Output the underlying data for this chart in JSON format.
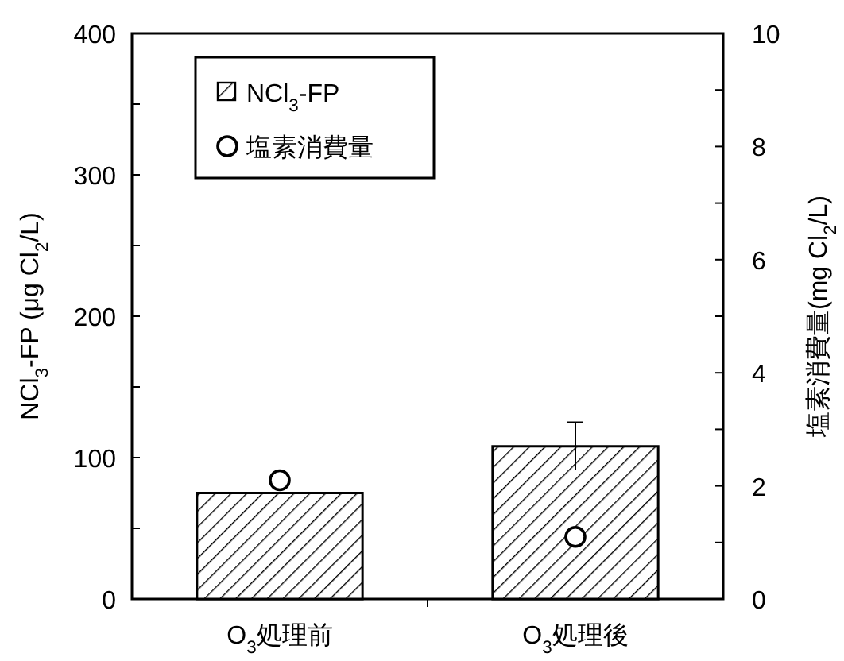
{
  "chart_data": {
    "type": "bar",
    "categories": [
      "O$_{3}$処理前",
      "O$_{3}$処理後"
    ],
    "ylabel": "NCl$_{3}$-FP (μg Cl$_{2}$/L)",
    "y2label": "塩素消費量(mg Cl$_{2}$/L)",
    "ylim": [
      0,
      400
    ],
    "yticks": [
      0,
      {
        "value": 50,
        "label": null
      },
      100,
      {
        "value": 150,
        "label": null
      },
      200,
      {
        "value": 250,
        "label": null
      },
      300,
      {
        "value": 350,
        "label": null
      },
      400
    ],
    "y2lim": [
      0,
      10
    ],
    "y2ticks": [
      0,
      {
        "value": 1,
        "label": null
      },
      2,
      {
        "value": 3,
        "label": null
      },
      4,
      {
        "value": 5,
        "label": null
      },
      6,
      {
        "value": 7,
        "label": null
      },
      8,
      {
        "value": 9,
        "label": null
      },
      10
    ],
    "legend": "top left",
    "series": [
      {
        "name": "NCl$_{3}$-FP",
        "color": "#000000",
        "values": [
          75,
          108
        ],
        "errors": [
          null,
          17
        ]
      },
      {
        "name": "塩素消費量",
        "type": "scatter",
        "axis": "y2",
        "marker": "circle",
        "color": "#000000",
        "values": [
          2.1,
          1.1
        ]
      }
    ]
  }
}
